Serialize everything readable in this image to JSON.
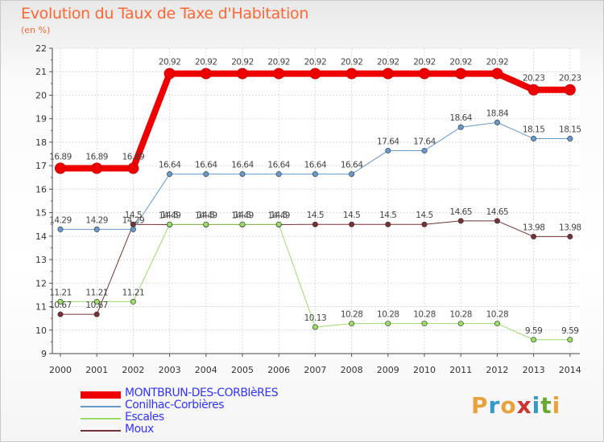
{
  "header": {
    "title": "Evolution du Taux de Taxe d'Habitation",
    "subtitle": "(en %)"
  },
  "logo": {
    "letters": [
      "P",
      "r",
      "o",
      "x",
      "i",
      "t",
      "i"
    ],
    "colors": [
      "#e8a23c",
      "#3399cc",
      "#e8a23c",
      "#cc3333",
      "#3399cc",
      "#66aa33",
      "#e8a23c"
    ]
  },
  "chart_data": {
    "type": "line",
    "x": [
      "2000",
      "2001",
      "2002",
      "2003",
      "2004",
      "2005",
      "2006",
      "2007",
      "2008",
      "2009",
      "2010",
      "2011",
      "2012",
      "2013",
      "2014"
    ],
    "ylim": [
      9,
      22
    ],
    "yticks": [
      "9",
      "10",
      "11",
      "12",
      "13",
      "14",
      "15",
      "16",
      "17",
      "18",
      "19",
      "20",
      "21",
      "22"
    ],
    "grid": true,
    "legend_position": "bottom",
    "series": [
      {
        "name": "MONTBRUN-DES-CORBIèRES",
        "color": "#ee0000",
        "legend_color": "#3333ff",
        "width": 8,
        "values": [
          16.89,
          16.89,
          16.89,
          20.92,
          20.92,
          20.92,
          20.92,
          20.92,
          20.92,
          20.92,
          20.92,
          20.92,
          20.92,
          20.23,
          20.23
        ],
        "labels": [
          "16.89",
          "16.89",
          "16.89",
          "20.92",
          "20.92",
          "20.92",
          "20.92",
          "20.92",
          "20.92",
          "20.92",
          "20.92",
          "20.92",
          "20.92",
          "20.23",
          "20.23"
        ]
      },
      {
        "name": "Conilhac-Corbières",
        "color": "#6699cc",
        "legend_color": "#3333ff",
        "width": 1,
        "values": [
          14.29,
          14.29,
          14.29,
          16.64,
          16.64,
          16.64,
          16.64,
          16.64,
          16.64,
          17.64,
          17.64,
          18.64,
          18.84,
          18.15,
          18.15
        ],
        "labels": [
          "14.29",
          "14.29",
          "14.29",
          "16.64",
          "16.64",
          "16.64",
          "16.64",
          "16.64",
          "16.64",
          "17.64",
          "17.64",
          "18.64",
          "18.84",
          "18.15",
          "18.15"
        ]
      },
      {
        "name": "Escales",
        "color": "#99dd66",
        "legend_color": "#3333ff",
        "width": 1,
        "values": [
          11.21,
          11.21,
          11.21,
          14.5,
          14.5,
          14.5,
          14.5,
          10.13,
          10.28,
          10.28,
          10.28,
          10.28,
          10.28,
          9.59,
          9.59
        ],
        "labels": [
          "11.21",
          "11.21",
          "11.21",
          "14.5",
          "14.5",
          "14.5",
          "14.5",
          "10.13",
          "10.28",
          "10.28",
          "10.28",
          "10.28",
          "10.28",
          "9.59",
          "9.59"
        ]
      },
      {
        "name": "Moux",
        "color": "#773333",
        "legend_color": "#3333ff",
        "width": 1,
        "values": [
          10.67,
          10.67,
          14.5,
          14.49,
          14.49,
          14.49,
          14.49,
          14.5,
          14.5,
          14.5,
          14.5,
          14.65,
          14.65,
          13.98,
          13.98
        ],
        "labels": [
          "10.67",
          "10.67",
          "14.5",
          "14.49",
          "14.49",
          "14.49",
          "14.49",
          "14.5",
          "14.5",
          "14.5",
          "14.5",
          "14.65",
          "14.65",
          "13.98",
          "13.98"
        ]
      }
    ]
  }
}
